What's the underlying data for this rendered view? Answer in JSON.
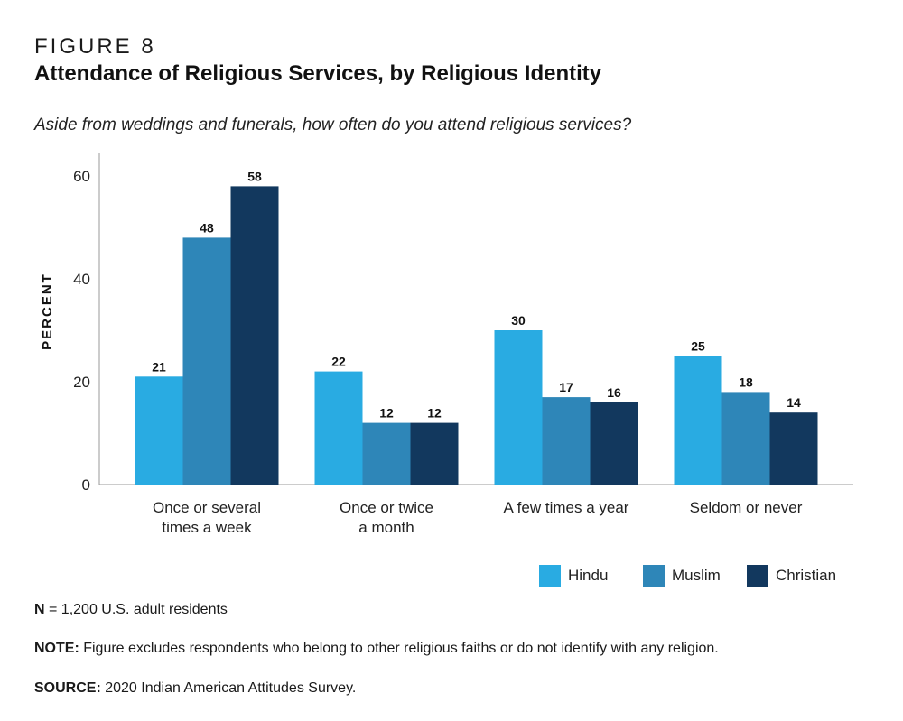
{
  "figure_label": "FIGURE 8",
  "title": "Attendance of Religious Services, by Religious Identity",
  "question": "Aside from weddings and funerals, how often do you attend religious services?",
  "chart_data": {
    "type": "bar",
    "categories": [
      [
        "Once or several",
        "times a week"
      ],
      [
        "Once or twice",
        "a month"
      ],
      [
        "A few times a year"
      ],
      [
        "Seldom or never"
      ]
    ],
    "series": [
      {
        "name": "Hindu",
        "color": "#29abe2",
        "values": [
          21,
          22,
          30,
          25
        ]
      },
      {
        "name": "Muslim",
        "color": "#2e86b8",
        "values": [
          48,
          12,
          17,
          18
        ]
      },
      {
        "name": "Christian",
        "color": "#12385e",
        "values": [
          58,
          12,
          16,
          14
        ]
      }
    ],
    "ylabel": "PERCENT",
    "ylim": [
      0,
      60
    ],
    "yticks": [
      0,
      20,
      40,
      60
    ],
    "data_labels": true,
    "legend_position": "bottom-right",
    "grid": false
  },
  "footer": {
    "n_label": "N",
    "n_text": " = 1,200 U.S. adult residents",
    "note_label": "NOTE:",
    "note_text": " Figure excludes respondents who belong to other religious faiths or do not identify with any religion.",
    "source_label": "SOURCE:",
    "source_text": " 2020 Indian American Attitudes Survey."
  }
}
